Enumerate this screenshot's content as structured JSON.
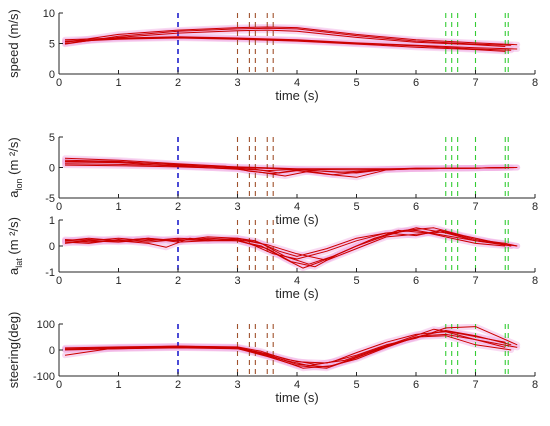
{
  "chart_data": [
    {
      "type": "line",
      "xlabel": "time (s)",
      "ylabel": "speed (m/s)",
      "xlim": [
        0,
        8
      ],
      "ylim": [
        0,
        10
      ],
      "xticks": [
        0,
        1,
        2,
        3,
        4,
        5,
        6,
        7,
        8
      ],
      "yticks": [
        0,
        5,
        10
      ],
      "series": [
        {
          "x": [
            0.1,
            1,
            2,
            3,
            3.5,
            4,
            5,
            6,
            7,
            7.7
          ],
          "y": [
            5.2,
            6.5,
            7.2,
            7.6,
            7.7,
            7.6,
            6.5,
            5.6,
            5.1,
            4.8
          ]
        },
        {
          "x": [
            0.1,
            1,
            2,
            3,
            3.5,
            4,
            5,
            6,
            7,
            7.6
          ],
          "y": [
            4.9,
            6.2,
            7.0,
            7.4,
            7.5,
            7.4,
            6.3,
            5.4,
            4.9,
            4.7
          ]
        },
        {
          "x": [
            0.1,
            1,
            2,
            3,
            3.5,
            4,
            5,
            6,
            7,
            7.5
          ],
          "y": [
            5.0,
            6.0,
            6.7,
            7.1,
            7.2,
            7.0,
            6.0,
            5.2,
            4.8,
            4.5
          ]
        },
        {
          "x": [
            0.1,
            1,
            2,
            3,
            4,
            5,
            6,
            7,
            7.7
          ],
          "y": [
            5.6,
            5.9,
            6.1,
            5.9,
            5.6,
            5.1,
            4.7,
            4.3,
            4.1
          ]
        },
        {
          "x": [
            0.1,
            1,
            2,
            3,
            4,
            5,
            6,
            7,
            7.6
          ],
          "y": [
            5.4,
            5.8,
            6.0,
            5.8,
            5.5,
            5.0,
            4.6,
            4.1,
            3.9
          ]
        },
        {
          "x": [
            0.1,
            1,
            2,
            3,
            4,
            5,
            6,
            7,
            7.5
          ],
          "y": [
            5.3,
            5.7,
            5.9,
            5.7,
            5.4,
            4.9,
            4.4,
            4.0,
            3.7
          ]
        }
      ]
    },
    {
      "type": "line",
      "xlabel": "time (s)",
      "ylabel": "a",
      "ylabel_sub": "lon",
      "ylabel_unit": " (m ²/s)",
      "xlim": [
        0,
        8
      ],
      "ylim": [
        -5,
        5
      ],
      "xticks": [
        0,
        1,
        2,
        3,
        4,
        5,
        6,
        7,
        8
      ],
      "yticks": [
        -5,
        0,
        5
      ],
      "series": [
        {
          "x": [
            0.1,
            1,
            2,
            2.8,
            3.2,
            3.6,
            4,
            4.5,
            5,
            5.5,
            6,
            7,
            7.7
          ],
          "y": [
            1.5,
            1.2,
            0.6,
            0.2,
            -0.6,
            -1.0,
            -0.4,
            -0.6,
            -0.9,
            -0.3,
            -0.2,
            -0.1,
            0.0
          ]
        },
        {
          "x": [
            0.1,
            1,
            2,
            2.8,
            3.3,
            3.7,
            4,
            4.5,
            5,
            5.5,
            6,
            7,
            7.6
          ],
          "y": [
            1.2,
            1.0,
            0.4,
            0.0,
            -0.3,
            -0.9,
            -0.5,
            -1.1,
            -1.6,
            -0.4,
            -0.2,
            -0.1,
            0.0
          ]
        },
        {
          "x": [
            0.1,
            1,
            2,
            3,
            3.4,
            3.8,
            4.2,
            4.6,
            5,
            5.4,
            6,
            7,
            7.5
          ],
          "y": [
            0.9,
            0.8,
            0.2,
            -0.3,
            -0.8,
            -1.4,
            -0.6,
            -1.2,
            -0.8,
            -0.3,
            -0.1,
            -0.1,
            0.0
          ]
        },
        {
          "x": [
            0.1,
            1,
            2,
            3,
            4,
            5,
            6,
            7,
            7.7
          ],
          "y": [
            0.6,
            0.5,
            0.3,
            0.0,
            -0.3,
            -0.4,
            -0.2,
            -0.1,
            0.0
          ]
        },
        {
          "x": [
            0.1,
            1,
            2,
            3,
            3.5,
            4,
            4.7,
            5.2,
            6,
            7,
            7.6
          ],
          "y": [
            0.4,
            0.3,
            0.1,
            -0.2,
            -0.5,
            -0.3,
            -0.8,
            -0.5,
            -0.2,
            -0.1,
            0.0
          ]
        },
        {
          "x": [
            0.1,
            1,
            2,
            3,
            4,
            5,
            6,
            7,
            7.5
          ],
          "y": [
            1.0,
            0.9,
            0.5,
            0.1,
            -0.2,
            -0.2,
            -0.2,
            -0.1,
            0.0
          ]
        }
      ]
    },
    {
      "type": "line",
      "xlabel": "time (s)",
      "ylabel": "a",
      "ylabel_sub": "lat",
      "ylabel_unit": " (m ²/s)",
      "xlim": [
        0,
        8
      ],
      "ylim": [
        -1,
        1
      ],
      "xticks": [
        0,
        1,
        2,
        3,
        4,
        5,
        6,
        7,
        8
      ],
      "yticks": [
        -1,
        0,
        1
      ],
      "series": [
        {
          "x": [
            0.1,
            0.5,
            1,
            1.5,
            2,
            2.5,
            3,
            3.3,
            3.6,
            4,
            4.5,
            5,
            5.5,
            6,
            6.5,
            7,
            7.5,
            7.7
          ],
          "y": [
            0.2,
            0.25,
            0.2,
            0.3,
            0.2,
            0.3,
            0.25,
            0.0,
            -0.3,
            -0.5,
            -0.2,
            0.2,
            0.5,
            0.6,
            0.4,
            0.2,
            0.1,
            0.0
          ]
        },
        {
          "x": [
            0.1,
            0.5,
            1,
            1.5,
            2,
            2.5,
            3,
            3.4,
            3.8,
            4.2,
            4.6,
            5,
            5.5,
            6,
            6.5,
            7,
            7.6
          ],
          "y": [
            0.15,
            0.1,
            0.25,
            0.15,
            0.25,
            0.2,
            0.3,
            0.1,
            -0.4,
            -0.7,
            -0.4,
            0.0,
            0.4,
            0.7,
            0.5,
            0.2,
            0.0
          ]
        },
        {
          "x": [
            0.1,
            0.5,
            1,
            1.5,
            2,
            2.5,
            3,
            3.5,
            3.9,
            4.3,
            4.7,
            5.2,
            5.7,
            6.2,
            6.6,
            7,
            7.5
          ],
          "y": [
            0.25,
            0.2,
            0.3,
            0.2,
            0.3,
            0.25,
            0.2,
            -0.1,
            -0.6,
            -0.8,
            -0.3,
            0.2,
            0.6,
            0.5,
            0.3,
            0.1,
            0.0
          ]
        },
        {
          "x": [
            0.1,
            0.5,
            1,
            1.5,
            2,
            2.5,
            3,
            3.3,
            3.7,
            4,
            4.5,
            5,
            5.5,
            6,
            6.4,
            7,
            7.7
          ],
          "y": [
            0.1,
            0.2,
            0.15,
            0.25,
            0.2,
            0.35,
            0.3,
            0.2,
            -0.2,
            -0.4,
            -0.1,
            0.3,
            0.5,
            0.4,
            0.6,
            0.2,
            0.0
          ]
        },
        {
          "x": [
            0.1,
            0.5,
            1,
            1.5,
            1.8,
            2.2,
            2.5,
            3,
            3.4,
            3.8,
            4.1,
            4.4,
            4.8,
            5.3,
            5.8,
            6.3,
            6.8,
            7.2,
            7.6
          ],
          "y": [
            0.2,
            0.15,
            0.2,
            0.1,
            -0.05,
            0.3,
            0.2,
            0.2,
            0.0,
            -0.5,
            -0.85,
            -0.6,
            -0.2,
            0.3,
            0.6,
            0.7,
            0.4,
            0.2,
            0.0
          ]
        },
        {
          "x": [
            0.1,
            0.5,
            1,
            1.5,
            2,
            2.5,
            3,
            3.5,
            4,
            4.5,
            5,
            5.5,
            6,
            6.5,
            7,
            7.5
          ],
          "y": [
            0.2,
            0.3,
            0.2,
            0.3,
            0.15,
            0.2,
            0.25,
            0.05,
            -0.3,
            -0.55,
            -0.1,
            0.35,
            0.45,
            0.55,
            0.25,
            0.1
          ]
        }
      ]
    },
    {
      "type": "line",
      "xlabel": "time (s)",
      "ylabel": "steering(deg)",
      "xlim": [
        0,
        8
      ],
      "ylim": [
        -100,
        100
      ],
      "xticks": [
        0,
        1,
        2,
        3,
        4,
        5,
        6,
        7,
        8
      ],
      "yticks": [
        -100,
        0,
        100
      ],
      "series": [
        {
          "x": [
            0.1,
            1,
            2,
            3,
            3.4,
            3.8,
            4.2,
            4.6,
            5,
            5.5,
            6,
            6.5,
            7,
            7.7
          ],
          "y": [
            5,
            8,
            10,
            10,
            -10,
            -40,
            -60,
            -45,
            -10,
            30,
            60,
            70,
            40,
            10
          ]
        },
        {
          "x": [
            0.1,
            1,
            2,
            3,
            3.5,
            4,
            4.5,
            5,
            5.5,
            6,
            6.5,
            7,
            7.6
          ],
          "y": [
            0,
            5,
            10,
            8,
            -20,
            -55,
            -65,
            -35,
            10,
            50,
            75,
            55,
            20
          ]
        },
        {
          "x": [
            0.1,
            1,
            2,
            3,
            3.6,
            4.1,
            4.6,
            5.1,
            5.6,
            6.1,
            6.5,
            7,
            7.5
          ],
          "y": [
            3,
            10,
            15,
            10,
            -30,
            -70,
            -60,
            -20,
            20,
            55,
            60,
            40,
            10
          ]
        },
        {
          "x": [
            0.1,
            1,
            2,
            3,
            3.5,
            4,
            4.5,
            5,
            5.5,
            6,
            6.5,
            7,
            7.7
          ],
          "y": [
            -20,
            10,
            12,
            5,
            -15,
            -45,
            -50,
            -20,
            20,
            45,
            85,
            90,
            20
          ]
        },
        {
          "x": [
            0.1,
            1,
            2,
            3,
            3.5,
            4,
            4.5,
            5,
            5.5,
            6,
            6.5,
            7,
            7.6
          ],
          "y": [
            2,
            5,
            8,
            5,
            -25,
            -60,
            -70,
            -30,
            15,
            50,
            55,
            20,
            0
          ]
        },
        {
          "x": [
            0.1,
            1,
            2,
            3,
            3.4,
            3.8,
            4.3,
            4.8,
            5.3,
            5.8,
            6.3,
            6.8,
            7.5
          ],
          "y": [
            8,
            12,
            15,
            12,
            -5,
            -35,
            -55,
            -40,
            0,
            40,
            80,
            60,
            30
          ]
        }
      ]
    }
  ],
  "markers": {
    "blue": [
      2.0
    ],
    "brown": [
      3.0,
      3.2,
      3.3,
      3.5,
      3.6
    ],
    "green": [
      6.5,
      6.6,
      6.7,
      7.0,
      7.5,
      7.55
    ]
  },
  "colors": {
    "line": "#cc0000",
    "halo": "#f2b3e6",
    "blue": "#1f1fcc",
    "brown": "#a0522d",
    "green": "#33cc33",
    "axis": "#262626"
  }
}
